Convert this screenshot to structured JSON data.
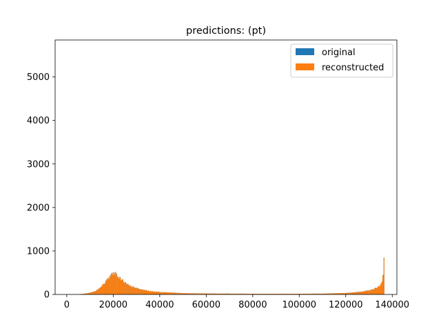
{
  "chart_data": {
    "type": "bar",
    "title": "predictions: (pt)",
    "xlabel": "",
    "ylabel": "",
    "xlim": [
      -5000,
      142000
    ],
    "ylim": [
      0,
      5850
    ],
    "xticks": [
      0,
      20000,
      40000,
      60000,
      80000,
      100000,
      120000,
      140000
    ],
    "xtick_labels": [
      "0",
      "20000",
      "40000",
      "60000",
      "80000",
      "100000",
      "120000",
      "140000"
    ],
    "yticks": [
      0,
      1000,
      2000,
      3000,
      4000,
      5000
    ],
    "ytick_labels": [
      "0",
      "1000",
      "2000",
      "3000",
      "4000",
      "5000"
    ],
    "grid": false,
    "legend_position": "top-right",
    "series": [
      {
        "name": "original",
        "color": "#1f77b4",
        "x": [
          0,
          4000,
          6000,
          8000,
          10000,
          12000,
          14000,
          15000,
          16000,
          17000,
          17500,
          18000,
          18500,
          19000,
          19500,
          20000,
          20500,
          21000,
          21500,
          22000,
          23000,
          24000,
          25000,
          26000,
          28000,
          30000,
          32000,
          35000,
          38000,
          40000,
          45000,
          50000,
          55000,
          60000,
          70000,
          80000,
          90000,
          100000,
          110000,
          115000,
          120000,
          124000,
          127000,
          129000,
          131000,
          132000,
          133000,
          134000,
          134500,
          135000,
          135500,
          136000,
          136300,
          136600
        ],
        "values": [
          0,
          2,
          10,
          20,
          40,
          70,
          140,
          200,
          260,
          320,
          350,
          380,
          410,
          440,
          460,
          480,
          490,
          470,
          450,
          420,
          360,
          310,
          270,
          230,
          180,
          140,
          110,
          85,
          65,
          55,
          40,
          30,
          25,
          20,
          18,
          15,
          15,
          15,
          18,
          25,
          35,
          50,
          70,
          90,
          110,
          130,
          150,
          180,
          200,
          230,
          280,
          480,
          800,
          1250
        ]
      },
      {
        "name": "reconstructed",
        "color": "#ff7f0e",
        "x": [
          0,
          4000,
          6000,
          8000,
          10000,
          12000,
          14000,
          15000,
          16000,
          17000,
          17500,
          18000,
          18500,
          19000,
          19500,
          20000,
          20500,
          21000,
          21500,
          22000,
          23000,
          24000,
          25000,
          26000,
          28000,
          30000,
          32000,
          35000,
          38000,
          40000,
          45000,
          50000,
          55000,
          60000,
          70000,
          80000,
          90000,
          100000,
          110000,
          115000,
          120000,
          124000,
          127000,
          129000,
          131000,
          132000,
          133000,
          134000,
          134500,
          135000,
          135500,
          136000,
          136300,
          136600
        ],
        "values": [
          0,
          2,
          10,
          20,
          40,
          70,
          140,
          200,
          260,
          320,
          350,
          380,
          410,
          440,
          460,
          480,
          490,
          470,
          450,
          420,
          360,
          310,
          270,
          230,
          180,
          140,
          110,
          85,
          65,
          55,
          40,
          30,
          25,
          20,
          18,
          15,
          15,
          15,
          18,
          25,
          35,
          50,
          70,
          90,
          110,
          130,
          150,
          180,
          200,
          230,
          280,
          480,
          800,
          1250
        ]
      }
    ]
  }
}
